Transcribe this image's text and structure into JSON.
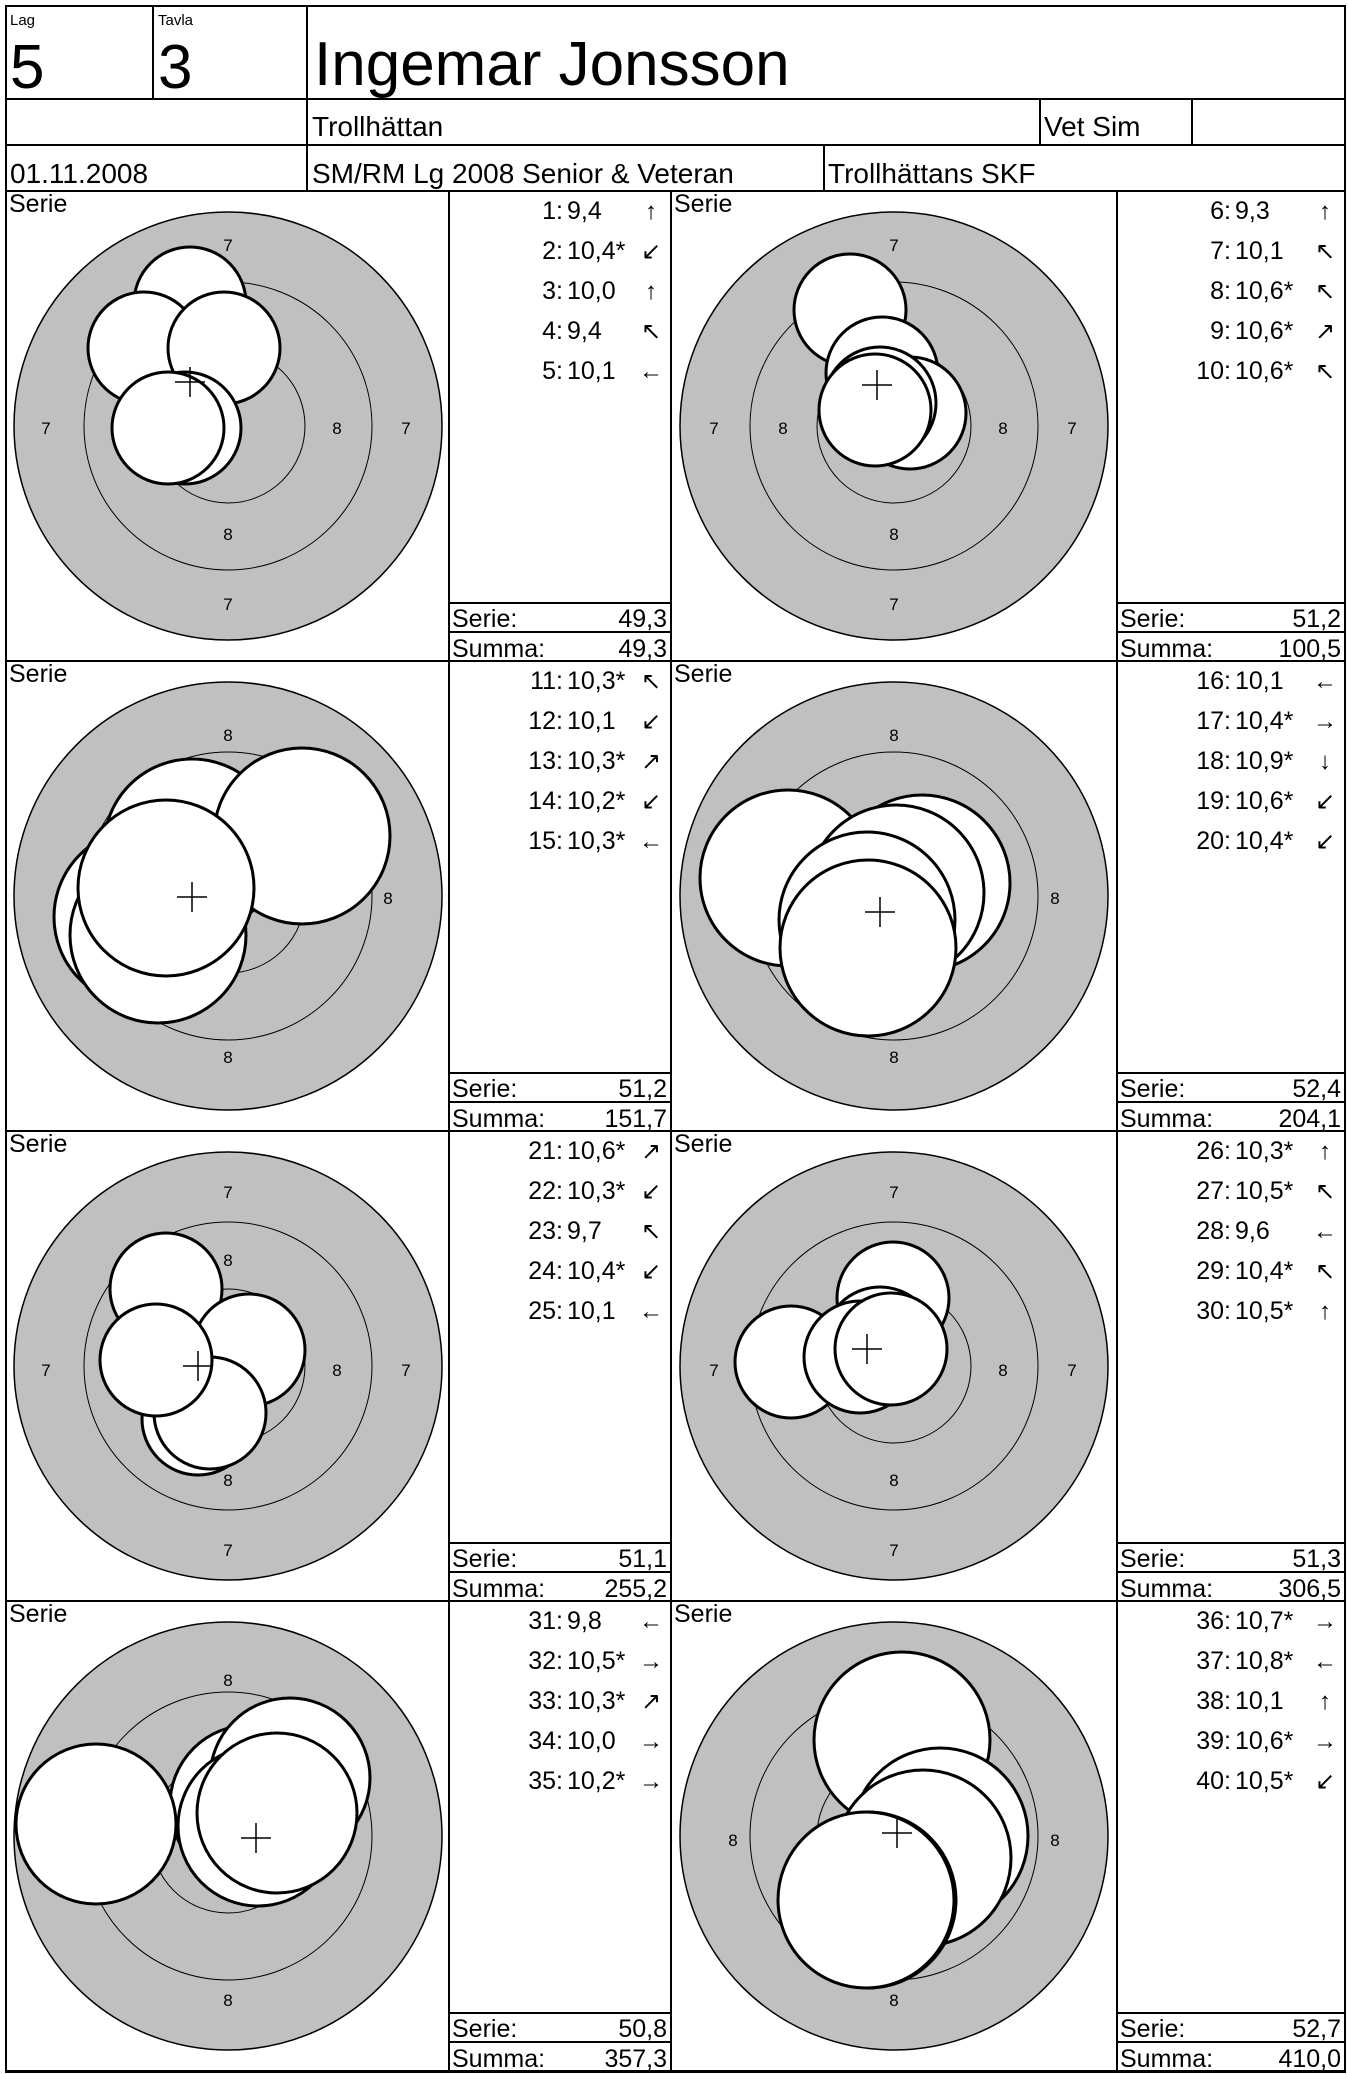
{
  "header": {
    "lag_label": "Lag",
    "lag_value": "5",
    "tavla_label": "Tavla",
    "tavla_value": "3",
    "shooter_name": "Ingemar Jonsson",
    "club_town": "Trollhättan",
    "shooter_class": "Vet Sim",
    "class_extra": "",
    "date": "01.11.2008",
    "competition": "SM/RM Lg 2008 Senior & Veteran",
    "organizer": "Trollhättans SKF"
  },
  "labels": {
    "serie_title": "Serie",
    "serie_total": "Serie:",
    "summa_total": "Summa:",
    "ring_7": "7",
    "ring_8": "8"
  },
  "series": [
    {
      "shots": [
        {
          "no": "1:",
          "value": "9,4",
          "dir": "↑"
        },
        {
          "no": "2:",
          "value": "10,4*",
          "dir": "↙"
        },
        {
          "no": "3:",
          "value": "10,0",
          "dir": "↑"
        },
        {
          "no": "4:",
          "value": "9,4",
          "dir": "↖"
        },
        {
          "no": "5:",
          "value": "10,1",
          "dir": "←"
        }
      ],
      "serie": "49,3",
      "summa": "49,3"
    },
    {
      "shots": [
        {
          "no": "6:",
          "value": "9,3",
          "dir": "↑"
        },
        {
          "no": "7:",
          "value": "10,1",
          "dir": "↖"
        },
        {
          "no": "8:",
          "value": "10,6*",
          "dir": "↖"
        },
        {
          "no": "9:",
          "value": "10,6*",
          "dir": "↗"
        },
        {
          "no": "10:",
          "value": "10,6*",
          "dir": "↖"
        }
      ],
      "serie": "51,2",
      "summa": "100,5"
    },
    {
      "shots": [
        {
          "no": "11:",
          "value": "10,3*",
          "dir": "↖"
        },
        {
          "no": "12:",
          "value": "10,1",
          "dir": "↙"
        },
        {
          "no": "13:",
          "value": "10,3*",
          "dir": "↗"
        },
        {
          "no": "14:",
          "value": "10,2*",
          "dir": "↙"
        },
        {
          "no": "15:",
          "value": "10,3*",
          "dir": "←"
        }
      ],
      "serie": "51,2",
      "summa": "151,7"
    },
    {
      "shots": [
        {
          "no": "16:",
          "value": "10,1",
          "dir": "←"
        },
        {
          "no": "17:",
          "value": "10,4*",
          "dir": "→"
        },
        {
          "no": "18:",
          "value": "10,9*",
          "dir": "↓"
        },
        {
          "no": "19:",
          "value": "10,6*",
          "dir": "↙"
        },
        {
          "no": "20:",
          "value": "10,4*",
          "dir": "↙"
        }
      ],
      "serie": "52,4",
      "summa": "204,1"
    },
    {
      "shots": [
        {
          "no": "21:",
          "value": "10,6*",
          "dir": "↗"
        },
        {
          "no": "22:",
          "value": "10,3*",
          "dir": "↙"
        },
        {
          "no": "23:",
          "value": "9,7",
          "dir": "↖"
        },
        {
          "no": "24:",
          "value": "10,4*",
          "dir": "↙"
        },
        {
          "no": "25:",
          "value": "10,1",
          "dir": "←"
        }
      ],
      "serie": "51,1",
      "summa": "255,2"
    },
    {
      "shots": [
        {
          "no": "26:",
          "value": "10,3*",
          "dir": "↑"
        },
        {
          "no": "27:",
          "value": "10,5*",
          "dir": "↖"
        },
        {
          "no": "28:",
          "value": "9,6",
          "dir": "←"
        },
        {
          "no": "29:",
          "value": "10,4*",
          "dir": "↖"
        },
        {
          "no": "30:",
          "value": "10,5*",
          "dir": "↑"
        }
      ],
      "serie": "51,3",
      "summa": "306,5"
    },
    {
      "shots": [
        {
          "no": "31:",
          "value": "9,8",
          "dir": "←"
        },
        {
          "no": "32:",
          "value": "10,5*",
          "dir": "→"
        },
        {
          "no": "33:",
          "value": "10,3*",
          "dir": "↗"
        },
        {
          "no": "34:",
          "value": "10,0",
          "dir": "→"
        },
        {
          "no": "35:",
          "value": "10,2*",
          "dir": "→"
        }
      ],
      "serie": "50,8",
      "summa": "357,3"
    },
    {
      "shots": [
        {
          "no": "36:",
          "value": "10,7*",
          "dir": "→"
        },
        {
          "no": "37:",
          "value": "10,8*",
          "dir": "←"
        },
        {
          "no": "38:",
          "value": "10,1",
          "dir": "↑"
        },
        {
          "no": "39:",
          "value": "10,6*",
          "dir": "→"
        },
        {
          "no": "40:",
          "value": "10,5*",
          "dir": "↙"
        }
      ],
      "serie": "52,7",
      "summa": "410,0"
    }
  ]
}
